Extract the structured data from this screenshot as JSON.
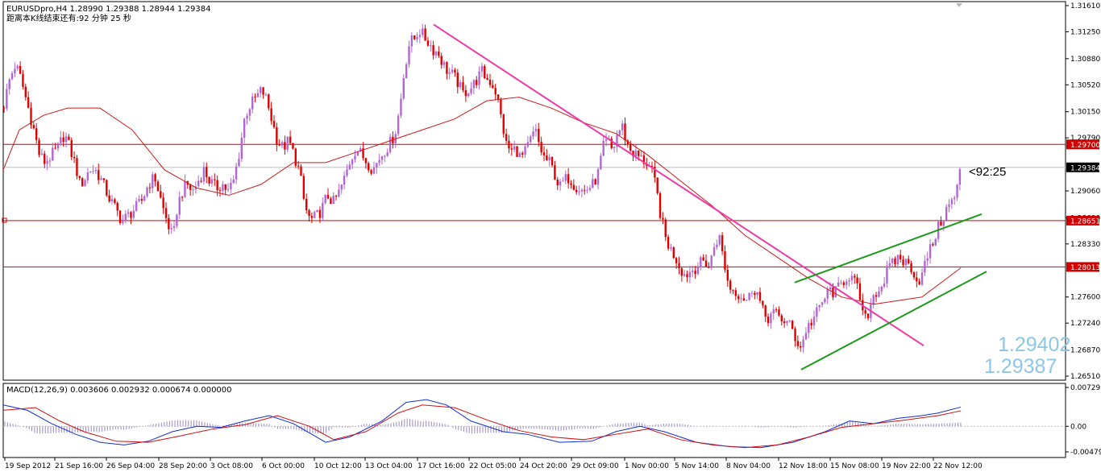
{
  "header": {
    "symbol_line": "EURUSDpro,H4  1.28990 1.29388 1.28944 1.29384",
    "countdown_line": "距离本K线结束还有:92 分钟 25 秒"
  },
  "timer_label": "<92:25",
  "bid_label": "1.29402",
  "ask_label": "1.29387",
  "colors": {
    "bull": "#b266d6",
    "bear": "#e00000",
    "ma": "#d01818",
    "trend": "#ee3aa8",
    "channel": "#1a9a1a",
    "level": "#d00000",
    "macd_main": "#1030d0",
    "macd_signal": "#d01010",
    "hist": "#9a88c8"
  },
  "chart_data": {
    "type": "candlestick",
    "price_axis": {
      "range": [
        1.2651,
        1.3161
      ],
      "ticks": [
        "1.31610",
        "1.31250",
        "1.30880",
        "1.30520",
        "1.30150",
        "1.29790",
        "1.29060",
        "1.28690",
        "1.28330",
        "1.27600",
        "1.27240",
        "1.26870",
        "1.26510"
      ]
    },
    "price_tags": [
      {
        "label": "1.29700",
        "value": 1.297,
        "style": "red"
      },
      {
        "label": "1.29384",
        "value": 1.29384,
        "style": "black"
      },
      {
        "label": "1.28651",
        "value": 1.28651,
        "style": "red"
      },
      {
        "label": "1.28013",
        "value": 1.28013,
        "style": "red"
      }
    ],
    "horizontal_levels": [
      1.297,
      1.28651,
      1.28013
    ],
    "time_labels": [
      "19 Sep 2012",
      "21 Sep 16:00",
      "26 Sep 04:00",
      "28 Sep 20:00",
      "3 Oct 08:00",
      "6 Oct 00:00",
      "10 Oct 12:00",
      "13 Oct 04:00",
      "17 Oct 16:00",
      "22 Oct 05:00",
      "24 Oct 20:00",
      "29 Oct 09:00",
      "1 Nov 00:00",
      "5 Nov 14:00",
      "8 Nov 04:00",
      "12 Nov 18:00",
      "15 Nov 08:00",
      "19 Nov 22:00",
      "22 Nov 12:00"
    ],
    "price_path": [
      [
        0,
        1.302
      ],
      [
        8,
        1.306
      ],
      [
        15,
        1.308
      ],
      [
        22,
        1.306
      ],
      [
        30,
        1.3025
      ],
      [
        38,
        1.299
      ],
      [
        45,
        1.2955
      ],
      [
        52,
        1.2945
      ],
      [
        60,
        1.2955
      ],
      [
        68,
        1.2965
      ],
      [
        76,
        1.2985
      ],
      [
        84,
        1.296
      ],
      [
        90,
        1.294
      ],
      [
        95,
        1.2915
      ],
      [
        100,
        1.292
      ],
      [
        107,
        1.2935
      ],
      [
        114,
        1.2935
      ],
      [
        120,
        1.2925
      ],
      [
        126,
        1.291
      ],
      [
        132,
        1.2895
      ],
      [
        140,
        1.288
      ],
      [
        147,
        1.2865
      ],
      [
        153,
        1.287
      ],
      [
        160,
        1.2878
      ],
      [
        167,
        1.2885
      ],
      [
        173,
        1.2895
      ],
      [
        180,
        1.2915
      ],
      [
        188,
        1.2925
      ],
      [
        194,
        1.29
      ],
      [
        200,
        1.2875
      ],
      [
        206,
        1.2855
      ],
      [
        211,
        1.284
      ],
      [
        216,
        1.2885
      ],
      [
        222,
        1.2905
      ],
      [
        228,
        1.2915
      ],
      [
        235,
        1.2905
      ],
      [
        242,
        1.292
      ],
      [
        249,
        1.2935
      ],
      [
        256,
        1.292
      ],
      [
        264,
        1.291
      ],
      [
        272,
        1.2915
      ],
      [
        279,
        1.2905
      ],
      [
        286,
        1.292
      ],
      [
        293,
        1.296
      ],
      [
        300,
        1.301
      ],
      [
        307,
        1.3025
      ],
      [
        314,
        1.3035
      ],
      [
        321,
        1.3045
      ],
      [
        327,
        1.303
      ],
      [
        333,
        1.3005
      ],
      [
        340,
        1.2975
      ],
      [
        347,
        1.2965
      ],
      [
        354,
        1.2975
      ],
      [
        361,
        1.2955
      ],
      [
        368,
        1.293
      ],
      [
        374,
        1.2885
      ],
      [
        381,
        1.2865
      ],
      [
        388,
        1.287
      ],
      [
        395,
        1.288
      ],
      [
        402,
        1.29
      ],
      [
        410,
        1.289
      ],
      [
        417,
        1.2905
      ],
      [
        424,
        1.2925
      ],
      [
        431,
        1.295
      ],
      [
        438,
        1.2965
      ],
      [
        445,
        1.2955
      ],
      [
        452,
        1.2945
      ],
      [
        459,
        1.2935
      ],
      [
        466,
        1.295
      ],
      [
        472,
        1.296
      ],
      [
        479,
        1.297
      ],
      [
        486,
        1.2985
      ],
      [
        492,
        1.302
      ],
      [
        498,
        1.3075
      ],
      [
        504,
        1.311
      ],
      [
        510,
        1.3115
      ],
      [
        516,
        1.3128
      ],
      [
        522,
        1.3118
      ],
      [
        528,
        1.311
      ],
      [
        534,
        1.31
      ],
      [
        540,
        1.3095
      ],
      [
        546,
        1.308
      ],
      [
        552,
        1.307
      ],
      [
        558,
        1.3065
      ],
      [
        564,
        1.3055
      ],
      [
        570,
        1.304
      ],
      [
        576,
        1.3045
      ],
      [
        582,
        1.305
      ],
      [
        588,
        1.306
      ],
      [
        594,
        1.307
      ],
      [
        600,
        1.306
      ],
      [
        606,
        1.3055
      ],
      [
        612,
        1.304
      ],
      [
        618,
        1.3005
      ],
      [
        624,
        1.297
      ],
      [
        630,
        1.296
      ],
      [
        636,
        1.2965
      ],
      [
        642,
        1.295
      ],
      [
        648,
        1.296
      ],
      [
        654,
        1.2975
      ],
      [
        660,
        1.299
      ],
      [
        666,
        1.2965
      ],
      [
        672,
        1.295
      ],
      [
        678,
        1.2945
      ],
      [
        684,
        1.293
      ],
      [
        690,
        1.291
      ],
      [
        696,
        1.292
      ],
      [
        702,
        1.2925
      ],
      [
        708,
        1.2915
      ],
      [
        714,
        1.291
      ],
      [
        720,
        1.2905
      ],
      [
        726,
        1.291
      ],
      [
        732,
        1.2915
      ],
      [
        738,
        1.293
      ],
      [
        744,
        1.2965
      ],
      [
        750,
        1.2975
      ],
      [
        756,
        1.296
      ],
      [
        762,
        1.2985
      ],
      [
        768,
        1.2995
      ],
      [
        774,
        1.297
      ],
      [
        780,
        1.296
      ],
      [
        786,
        1.2955
      ],
      [
        792,
        1.295
      ],
      [
        798,
        1.2945
      ],
      [
        804,
        1.2935
      ],
      [
        810,
        1.291
      ],
      [
        816,
        1.287
      ],
      [
        822,
        1.284
      ],
      [
        828,
        1.2825
      ],
      [
        834,
        1.2815
      ],
      [
        840,
        1.28
      ],
      [
        846,
        1.279
      ],
      [
        852,
        1.2795
      ],
      [
        858,
        1.28
      ],
      [
        864,
        1.2805
      ],
      [
        870,
        1.281
      ],
      [
        876,
        1.28
      ],
      [
        882,
        1.283
      ],
      [
        888,
        1.2845
      ],
      [
        894,
        1.281
      ],
      [
        900,
        1.2775
      ],
      [
        906,
        1.277
      ],
      [
        912,
        1.2765
      ],
      [
        918,
        1.276
      ],
      [
        924,
        1.2755
      ],
      [
        930,
        1.2775
      ],
      [
        936,
        1.2765
      ],
      [
        942,
        1.274
      ],
      [
        948,
        1.273
      ],
      [
        954,
        1.2738
      ],
      [
        960,
        1.2735
      ],
      [
        966,
        1.273
      ],
      [
        972,
        1.2725
      ],
      [
        978,
        1.2718
      ],
      [
        984,
        1.27
      ],
      [
        990,
        1.269
      ],
      [
        996,
        1.2715
      ],
      [
        1002,
        1.2725
      ],
      [
        1008,
        1.2735
      ],
      [
        1014,
        1.2748
      ],
      [
        1020,
        1.276
      ],
      [
        1026,
        1.277
      ],
      [
        1032,
        1.2765
      ],
      [
        1038,
        1.2775
      ],
      [
        1044,
        1.2785
      ],
      [
        1050,
        1.279
      ],
      [
        1056,
        1.278
      ],
      [
        1062,
        1.2765
      ],
      [
        1068,
        1.2725
      ],
      [
        1074,
        1.274
      ],
      [
        1080,
        1.2765
      ],
      [
        1086,
        1.277
      ],
      [
        1092,
        1.278
      ],
      [
        1098,
        1.28
      ],
      [
        1104,
        1.2805
      ],
      [
        1110,
        1.2815
      ],
      [
        1116,
        1.281
      ],
      [
        1122,
        1.2805
      ],
      [
        1128,
        1.28
      ],
      [
        1134,
        1.278
      ],
      [
        1140,
        1.279
      ],
      [
        1146,
        1.2815
      ],
      [
        1152,
        1.283
      ],
      [
        1158,
        1.285
      ],
      [
        1164,
        1.2865
      ],
      [
        1170,
        1.288
      ],
      [
        1176,
        1.289
      ],
      [
        1182,
        1.29
      ],
      [
        1188,
        1.2938
      ]
    ],
    "moving_average": [
      [
        0,
        1.2935
      ],
      [
        20,
        1.299
      ],
      [
        50,
        1.301
      ],
      [
        80,
        1.302
      ],
      [
        120,
        1.302
      ],
      [
        160,
        1.299
      ],
      [
        200,
        1.2935
      ],
      [
        240,
        1.291
      ],
      [
        280,
        1.29
      ],
      [
        320,
        1.2915
      ],
      [
        360,
        1.2945
      ],
      [
        400,
        1.2945
      ],
      [
        440,
        1.296
      ],
      [
        480,
        1.2975
      ],
      [
        520,
        1.299
      ],
      [
        560,
        1.3005
      ],
      [
        600,
        1.303
      ],
      [
        640,
        1.3035
      ],
      [
        680,
        1.302
      ],
      [
        720,
        1.3
      ],
      [
        760,
        1.2985
      ],
      [
        800,
        1.2955
      ],
      [
        840,
        1.292
      ],
      [
        880,
        1.2885
      ],
      [
        920,
        1.2845
      ],
      [
        960,
        1.2815
      ],
      [
        1000,
        1.2785
      ],
      [
        1040,
        1.276
      ],
      [
        1080,
        1.275
      ],
      [
        1110,
        1.2755
      ],
      [
        1140,
        1.276
      ],
      [
        1170,
        1.2785
      ],
      [
        1188,
        1.28
      ]
    ],
    "trendline": [
      [
        538,
        1.3135
      ],
      [
        1146,
        1.2693
      ]
    ],
    "channel_upper": [
      [
        986,
        1.278
      ],
      [
        1218,
        1.2874
      ]
    ],
    "channel_lower": [
      [
        994,
        1.266
      ],
      [
        1224,
        1.2795
      ]
    ],
    "macd": {
      "label": "MACD(12,26,9) 0.003606 0.002932 0.000674 0.000000",
      "ticks": [
        "0.007292",
        "0.00",
        "-0.004795"
      ],
      "range": [
        -0.004795,
        0.007292
      ],
      "main": [
        [
          0,
          0.004
        ],
        [
          30,
          0.003
        ],
        [
          60,
          0.0005
        ],
        [
          90,
          -0.0015
        ],
        [
          120,
          -0.003
        ],
        [
          150,
          -0.0035
        ],
        [
          180,
          -0.0028
        ],
        [
          210,
          -0.001
        ],
        [
          240,
          0.0
        ],
        [
          270,
          -0.0002
        ],
        [
          300,
          0.001
        ],
        [
          330,
          0.002
        ],
        [
          360,
          0.0005
        ],
        [
          400,
          -0.003
        ],
        [
          430,
          -0.002
        ],
        [
          470,
          0.001
        ],
        [
          500,
          0.0045
        ],
        [
          525,
          0.005
        ],
        [
          550,
          0.004
        ],
        [
          580,
          0.001
        ],
        [
          620,
          -0.001
        ],
        [
          650,
          -0.0015
        ],
        [
          690,
          -0.003
        ],
        [
          730,
          -0.0028
        ],
        [
          760,
          -0.001
        ],
        [
          790,
          0.0
        ],
        [
          820,
          -0.001
        ],
        [
          860,
          -0.003
        ],
        [
          900,
          -0.0038
        ],
        [
          940,
          -0.004
        ],
        [
          980,
          -0.003
        ],
        [
          1020,
          -0.001
        ],
        [
          1050,
          0.001
        ],
        [
          1080,
          0.0005
        ],
        [
          1110,
          0.0015
        ],
        [
          1140,
          0.002
        ],
        [
          1160,
          0.0025
        ],
        [
          1188,
          0.0036
        ]
      ],
      "signal": [
        [
          0,
          0.003
        ],
        [
          40,
          0.0035
        ],
        [
          70,
          0.001
        ],
        [
          100,
          -0.001
        ],
        [
          140,
          -0.0028
        ],
        [
          180,
          -0.003
        ],
        [
          220,
          -0.0018
        ],
        [
          260,
          -0.0005
        ],
        [
          300,
          0.0003
        ],
        [
          340,
          0.002
        ],
        [
          380,
          0.0
        ],
        [
          410,
          -0.0025
        ],
        [
          450,
          -0.001
        ],
        [
          490,
          0.0025
        ],
        [
          520,
          0.004
        ],
        [
          560,
          0.0035
        ],
        [
          600,
          0.0012
        ],
        [
          640,
          -0.0008
        ],
        [
          680,
          -0.002
        ],
        [
          720,
          -0.0025
        ],
        [
          760,
          -0.0015
        ],
        [
          800,
          -0.0005
        ],
        [
          840,
          -0.0025
        ],
        [
          880,
          -0.0035
        ],
        [
          920,
          -0.004
        ],
        [
          960,
          -0.0035
        ],
        [
          1000,
          -0.002
        ],
        [
          1040,
          -0.0002
        ],
        [
          1080,
          0.0005
        ],
        [
          1120,
          0.0012
        ],
        [
          1160,
          0.002
        ],
        [
          1188,
          0.0029
        ]
      ]
    }
  }
}
